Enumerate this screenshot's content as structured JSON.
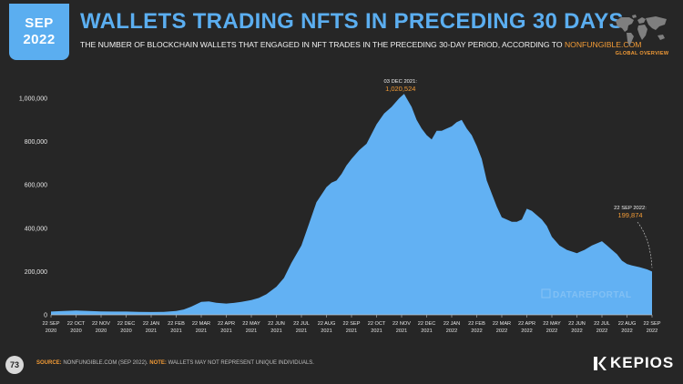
{
  "header": {
    "month": "SEP",
    "year": "2022",
    "title": "WALLETS TRADING NFTS IN PRECEDING 30 DAYS",
    "subtitle": "THE NUMBER OF BLOCKCHAIN WALLETS THAT ENGAGED IN NFT TRADES IN THE PRECEDING 30-DAY PERIOD, ACCORDING TO ",
    "subtitle_link": "NONFUNGIBLE.COM",
    "map_label": "GLOBAL OVERVIEW"
  },
  "footer": {
    "page_number": "73",
    "source_label": "SOURCE:",
    "source_text": " NONFUNGIBLE.COM (SEP 2022). ",
    "note_label": "NOTE:",
    "note_text": " WALLETS MAY NOT REPRESENT UNIQUE INDIVIDUALS.",
    "brand": "KEPIOS",
    "watermark": "DATAREPORTAL"
  },
  "colors": {
    "accent": "#5baef0",
    "area": "#62b1f3",
    "highlight": "#f29b36",
    "background": "#262626"
  },
  "chart_data": {
    "type": "area",
    "title": "WALLETS TRADING NFTS IN PRECEDING 30 DAYS",
    "ylim": [
      0,
      1000000
    ],
    "grid": false,
    "y_ticks": [
      0,
      200000,
      400000,
      600000,
      800000,
      1000000
    ],
    "y_tick_labels": [
      "0",
      "200,000",
      "400,000",
      "600,000",
      "800,000",
      "1,000,000"
    ],
    "x_range": [
      0,
      24
    ],
    "x_ticks": [
      {
        "top": "22 SEP",
        "bottom": "2020"
      },
      {
        "top": "22 OCT",
        "bottom": "2020"
      },
      {
        "top": "22 NOV",
        "bottom": "2020"
      },
      {
        "top": "22 DEC",
        "bottom": "2020"
      },
      {
        "top": "22 JAN",
        "bottom": "2021"
      },
      {
        "top": "22 FEB",
        "bottom": "2021"
      },
      {
        "top": "22 MAR",
        "bottom": "2021"
      },
      {
        "top": "22 APR",
        "bottom": "2021"
      },
      {
        "top": "22 MAY",
        "bottom": "2021"
      },
      {
        "top": "22 JUN",
        "bottom": "2021"
      },
      {
        "top": "22 JUL",
        "bottom": "2021"
      },
      {
        "top": "22 AUG",
        "bottom": "2021"
      },
      {
        "top": "22 SEP",
        "bottom": "2021"
      },
      {
        "top": "22 OCT",
        "bottom": "2021"
      },
      {
        "top": "22 NOV",
        "bottom": "2021"
      },
      {
        "top": "22 DEC",
        "bottom": "2021"
      },
      {
        "top": "22 JAN",
        "bottom": "2022"
      },
      {
        "top": "22 FEB",
        "bottom": "2022"
      },
      {
        "top": "22 MAR",
        "bottom": "2022"
      },
      {
        "top": "22 APR",
        "bottom": "2022"
      },
      {
        "top": "22 MAY",
        "bottom": "2022"
      },
      {
        "top": "22 JUN",
        "bottom": "2022"
      },
      {
        "top": "22 JUL",
        "bottom": "2022"
      },
      {
        "top": "22 AUG",
        "bottom": "2022"
      },
      {
        "top": "22 SEP",
        "bottom": "2022"
      }
    ],
    "series": [
      {
        "x": [
          0,
          0.5,
          1,
          1.5,
          2,
          2.5,
          3,
          3.5,
          4,
          4.5,
          5,
          5.3,
          5.6,
          6,
          6.3,
          6.6,
          7,
          7.3,
          7.6,
          8,
          8.3,
          8.6,
          9,
          9.3,
          9.6,
          10,
          10.3,
          10.6,
          11,
          11.2,
          11.4,
          11.6,
          11.8,
          12,
          12.3,
          12.6,
          13,
          13.3,
          13.6,
          13.9,
          14.1,
          14.2,
          14.4,
          14.6,
          14.8,
          15,
          15.2,
          15.4,
          15.6,
          15.8,
          16,
          16.2,
          16.4,
          16.6,
          16.8,
          17,
          17.2,
          17.4,
          17.6,
          17.8,
          18,
          18.2,
          18.4,
          18.6,
          18.8,
          19,
          19.2,
          19.4,
          19.6,
          19.8,
          20,
          20.3,
          20.6,
          21,
          21.3,
          21.6,
          22,
          22.2,
          22.4,
          22.6,
          22.8,
          23,
          23.2,
          23.5,
          23.8,
          24
        ],
        "values": [
          15000,
          18000,
          20000,
          18000,
          16000,
          15000,
          15000,
          14000,
          13000,
          14000,
          18000,
          25000,
          38000,
          60000,
          62000,
          56000,
          52000,
          55000,
          60000,
          68000,
          78000,
          95000,
          130000,
          170000,
          240000,
          320000,
          420000,
          520000,
          590000,
          610000,
          620000,
          650000,
          690000,
          720000,
          760000,
          790000,
          880000,
          930000,
          960000,
          1000000,
          1020524,
          1000000,
          960000,
          900000,
          860000,
          830000,
          810000,
          850000,
          850000,
          860000,
          870000,
          890000,
          900000,
          860000,
          830000,
          780000,
          720000,
          620000,
          560000,
          500000,
          450000,
          440000,
          430000,
          430000,
          440000,
          490000,
          480000,
          460000,
          440000,
          410000,
          360000,
          320000,
          300000,
          285000,
          300000,
          320000,
          340000,
          320000,
          300000,
          280000,
          250000,
          235000,
          228000,
          220000,
          210000,
          199874
        ]
      }
    ],
    "annotations": [
      {
        "x": 14.1,
        "date": "03 DEC 2021:",
        "value": "1,020,524"
      },
      {
        "x": 24,
        "date": "22 SEP 2022:",
        "value": "199,874"
      }
    ]
  }
}
